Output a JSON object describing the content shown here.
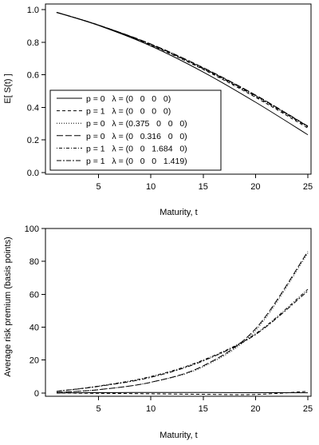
{
  "chart_data": [
    {
      "type": "line",
      "title": "",
      "xlabel": "Maturity, t",
      "ylabel": "E[ S(t) ]",
      "xlim": [
        1,
        25
      ],
      "ylim": [
        0,
        1
      ],
      "xticks": [
        "5",
        "10",
        "15",
        "20",
        "25"
      ],
      "yticks": [
        "0.0",
        "0.2",
        "0.4",
        "0.6",
        "0.8",
        "1.0"
      ],
      "legend_position": "bottom-left",
      "x": [
        1,
        5,
        10,
        15,
        20,
        25
      ],
      "series": [
        {
          "name": "p = 0   λ = (0   0   0   0)",
          "style": "solid",
          "values": [
            0.983,
            0.903,
            0.777,
            0.617,
            0.432,
            0.232
          ]
        },
        {
          "name": "p = 1   λ = (0   0   0   0)",
          "style": "dashed",
          "values": [
            0.983,
            0.904,
            0.782,
            0.633,
            0.462,
            0.273
          ]
        },
        {
          "name": "p = 0   λ = (0.375   0   0   0)",
          "style": "dotted",
          "values": [
            0.983,
            0.905,
            0.786,
            0.64,
            0.472,
            0.283
          ]
        },
        {
          "name": "p = 0   λ = (0   0.316   0   0)",
          "style": "longdash",
          "values": [
            0.983,
            0.905,
            0.789,
            0.644,
            0.476,
            0.285
          ]
        },
        {
          "name": "p = 1   λ = (0   0   1.684   0)",
          "style": "dotdash",
          "values": [
            0.983,
            0.905,
            0.785,
            0.637,
            0.468,
            0.28
          ]
        },
        {
          "name": "p = 1   λ = (0   0   0   1.419)",
          "style": "twodash",
          "values": [
            0.983,
            0.905,
            0.787,
            0.641,
            0.473,
            0.284
          ]
        }
      ]
    },
    {
      "type": "line",
      "title": "",
      "xlabel": "Maturity, t",
      "ylabel": "Average risk premium (basis points)",
      "xlim": [
        1,
        25
      ],
      "ylim": [
        -2,
        100
      ],
      "xticks": [
        "5",
        "10",
        "15",
        "20",
        "25"
      ],
      "yticks": [
        "0",
        "20",
        "40",
        "60",
        "80",
        "100"
      ],
      "x": [
        1,
        5,
        10,
        15,
        20,
        25
      ],
      "series": [
        {
          "style": "solid",
          "values": [
            0,
            0.2,
            0.3,
            0.3,
            0.2,
            0.1
          ]
        },
        {
          "style": "dashed",
          "values": [
            0,
            -0.2,
            -0.5,
            -0.8,
            -0.9,
            1.0
          ]
        },
        {
          "style": "dotted",
          "values": [
            0.3,
            2.0,
            6.5,
            16.0,
            38.0,
            85.0
          ]
        },
        {
          "style": "longdash",
          "values": [
            0.3,
            2.0,
            6.5,
            16.5,
            39.0,
            86.0
          ]
        },
        {
          "style": "dotdash",
          "values": [
            1.0,
            4.2,
            10.0,
            20.0,
            36.0,
            63.0
          ]
        },
        {
          "style": "twodash",
          "values": [
            1.0,
            4.0,
            9.5,
            19.5,
            35.5,
            62.0
          ]
        }
      ]
    }
  ]
}
